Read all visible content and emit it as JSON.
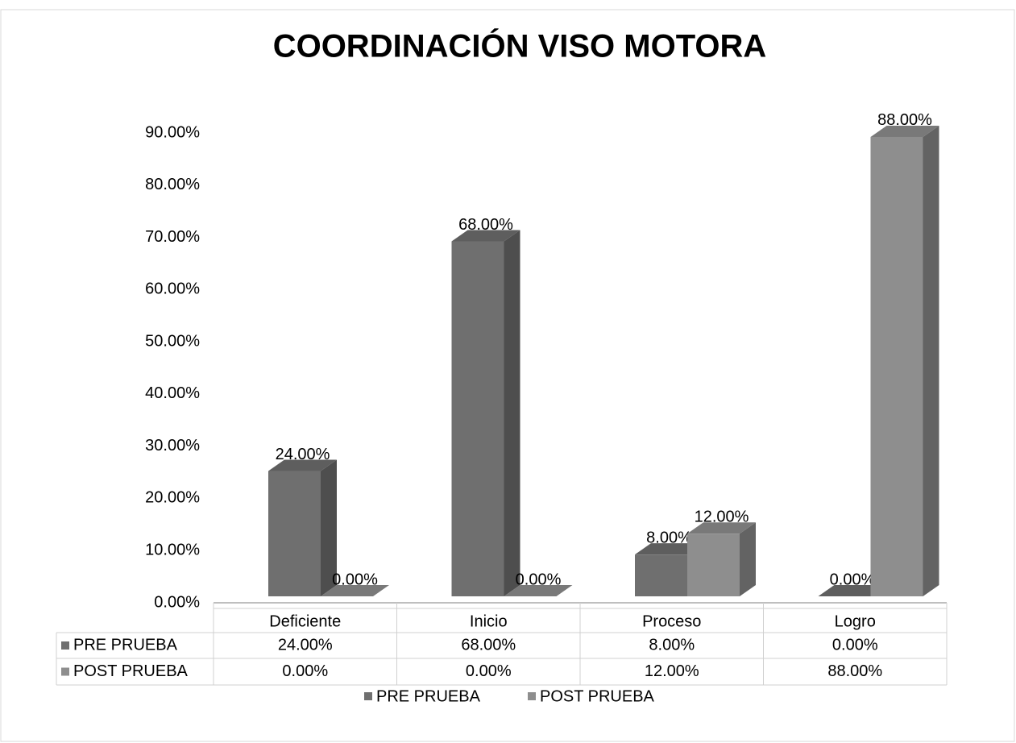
{
  "chart_data": {
    "type": "bar3d",
    "title": "COORDINACIÓN VISO MOTORA",
    "categories": [
      "Deficiente",
      "Inicio",
      "Proceso",
      "Logro"
    ],
    "series": [
      {
        "name": "PRE PRUEBA",
        "color": "#6f6f6f",
        "values": [
          24,
          68,
          8,
          0
        ],
        "value_labels": [
          "24.00%",
          "68.00%",
          "8.00%",
          "0.00%"
        ]
      },
      {
        "name": "POST PRUEBA",
        "color": "#8e8e8e",
        "values": [
          0,
          0,
          12,
          88
        ],
        "value_labels": [
          "0.00%",
          "0.00%",
          "12.00%",
          "88.00%"
        ]
      }
    ],
    "ylim": [
      0,
      90
    ],
    "yticks": [
      {
        "value": 0,
        "label": "0.00%"
      },
      {
        "value": 10,
        "label": "10.00%"
      },
      {
        "value": 20,
        "label": "20.00%"
      },
      {
        "value": 30,
        "label": "30.00%"
      },
      {
        "value": 40,
        "label": "40.00%"
      },
      {
        "value": 50,
        "label": "50.00%"
      },
      {
        "value": 60,
        "label": "60.00%"
      },
      {
        "value": 70,
        "label": "70.00%"
      },
      {
        "value": 80,
        "label": "80.00%"
      },
      {
        "value": 90,
        "label": "90.00%"
      }
    ],
    "grid": false
  }
}
